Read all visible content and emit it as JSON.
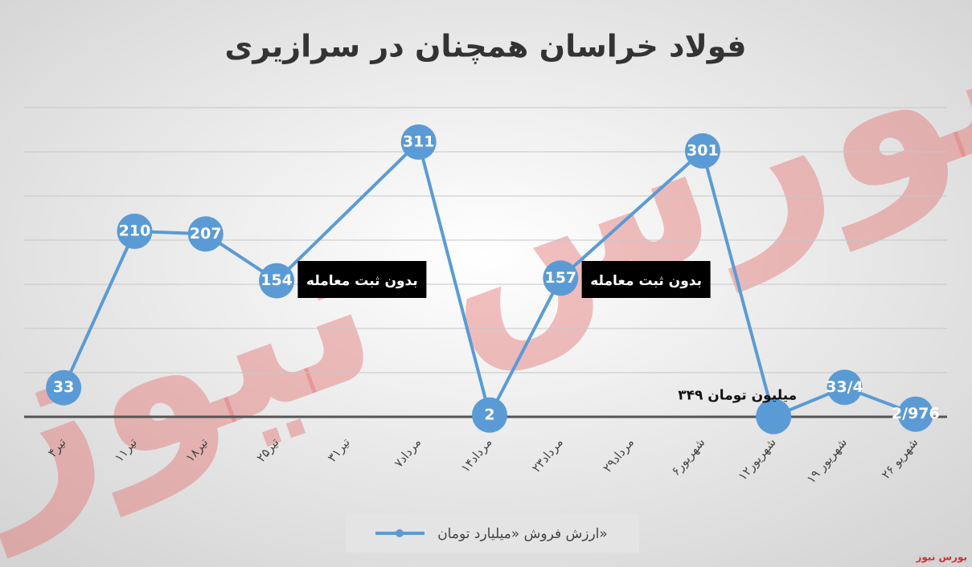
{
  "chart_data": {
    "type": "line",
    "title": "فولاد خراسان همچنان در سرازیری",
    "categories": [
      "۴تیر",
      "۱۱تیر",
      "۱۸تیر",
      "۲۵تیر",
      "۳۱تیر",
      "۷مرداد",
      "۱۴مرداد",
      "۲۳مرداد",
      "۲۹مرداد",
      "۶شهریور",
      "۱۲شهریور",
      "۱۹ شهریور",
      "۲۶ شهریو"
    ],
    "series": [
      {
        "name": "ارزش فروش «میلیارد تومان»",
        "color": "#5b9bd5",
        "values": [
          33,
          210,
          207,
          154,
          null,
          311,
          2,
          157,
          null,
          301,
          0.349,
          33.4,
          2.976
        ],
        "value_labels": [
          "33",
          "210",
          "207",
          "154",
          null,
          "311",
          "2",
          "157",
          null,
          "301",
          "۳۴۹ میلیون تومان",
          "33/4",
          "2/976"
        ]
      }
    ],
    "annotations": [
      {
        "text": "بدون ثبت معامله",
        "category": 4
      },
      {
        "text": "بدون ثبت معامله",
        "category": 8
      }
    ],
    "ylim": [
      0,
      350
    ],
    "yticks": [
      0,
      50,
      100,
      150,
      200,
      250,
      300,
      350
    ],
    "grid": true,
    "source": "بورس نیوز"
  }
}
